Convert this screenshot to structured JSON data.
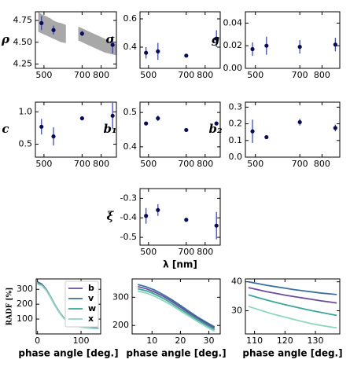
{
  "chart_data": [
    {
      "type": "errorbar",
      "ylabel": "ρ",
      "x": [
        487,
        550,
        700,
        860
      ],
      "values": [
        4.72,
        4.64,
        4.6,
        4.47
      ],
      "errors": [
        0.08,
        0.05,
        0.03,
        0.1
      ],
      "band": {
        "x": [
          470,
          490,
          510,
          530,
          550,
          570,
          590,
          615,
          650,
          680,
          700,
          720,
          740,
          760,
          780,
          800,
          820,
          840,
          860,
          880
        ],
        "upper": [
          4.85,
          4.82,
          4.8,
          4.78,
          4.75,
          4.73,
          4.72,
          4.7,
          null,
          4.68,
          4.66,
          4.64,
          4.62,
          4.6,
          4.58,
          4.56,
          4.54,
          4.52,
          4.5,
          4.48
        ],
        "lower": [
          4.62,
          4.6,
          4.58,
          4.56,
          4.54,
          4.52,
          4.5,
          4.49,
          null,
          4.52,
          4.5,
          4.48,
          4.46,
          4.44,
          4.42,
          4.4,
          4.38,
          4.37,
          4.36,
          4.35
        ],
        "color": "#999999"
      },
      "color": "#0b0b5c",
      "error_color": "#2a3bd6",
      "xlim": [
        455,
        880
      ],
      "xticks": [
        500,
        700,
        800
      ],
      "ylim": [
        4.2,
        4.85
      ],
      "yticks": [
        {
          "value": 4.25,
          "label": "4.25"
        },
        {
          "value": 4.5,
          "label": "4.50"
        },
        {
          "value": 4.75,
          "label": "4.75"
        }
      ]
    },
    {
      "type": "errorbar",
      "ylabel": "σ",
      "x": [
        487,
        550,
        700,
        860
      ],
      "values": [
        0.36,
        0.37,
        0.34,
        0.46
      ],
      "errors": [
        0.04,
        0.06,
        0.01,
        0.06
      ],
      "color": "#0b0b5c",
      "error_color": "#2a3bd6",
      "xlim": [
        455,
        880
      ],
      "xticks": [
        500,
        700,
        800
      ],
      "ylim": [
        0.25,
        0.65
      ],
      "yticks": [
        0.4,
        0.6
      ]
    },
    {
      "type": "errorbar",
      "ylabel": "g",
      "x": [
        487,
        550,
        700,
        860
      ],
      "values": [
        0.017,
        0.02,
        0.019,
        0.021
      ],
      "errors": [
        0.006,
        0.008,
        0.006,
        0.006
      ],
      "color": "#0b0b5c",
      "error_color": "#2a3bd6",
      "xlim": [
        455,
        880
      ],
      "xticks": [
        500,
        700,
        800
      ],
      "ylim": [
        0,
        0.05
      ],
      "yticks": [
        {
          "value": 0,
          "label": "0.00"
        },
        0.02,
        0.04
      ]
    },
    {
      "type": "errorbar",
      "ylabel": "c",
      "x": [
        487,
        550,
        700,
        860
      ],
      "values": [
        0.77,
        0.62,
        0.9,
        0.94
      ],
      "errors": [
        0.12,
        0.14,
        0.03,
        0.2
      ],
      "color": "#0b0b5c",
      "error_color": "#2a3bd6",
      "xlim": [
        455,
        880
      ],
      "xticks": [
        500,
        700,
        800
      ],
      "ylim": [
        0.3,
        1.15
      ],
      "yticks": [
        0.5,
        {
          "value": 1,
          "label": "1.0"
        }
      ]
    },
    {
      "type": "errorbar",
      "ylabel": "b₁",
      "x": [
        487,
        550,
        700,
        860
      ],
      "values": [
        0.468,
        0.483,
        0.449,
        0.468
      ],
      "errors": [
        0.005,
        0.008,
        0.004,
        0.006
      ],
      "color": "#0b0b5c",
      "error_color": "#2a3bd6",
      "xlim": [
        455,
        880
      ],
      "xticks": [
        500,
        700,
        800
      ],
      "ylim": [
        0.37,
        0.53
      ],
      "yticks": [
        0.4,
        0.5
      ]
    },
    {
      "type": "errorbar",
      "ylabel": "b₂",
      "x": [
        487,
        550,
        700,
        860
      ],
      "values": [
        0.155,
        0.12,
        0.21,
        0.175
      ],
      "errors": [
        0.07,
        0.005,
        0.02,
        0.02
      ],
      "color": "#0b0b5c",
      "error_color": "#2a3bd6",
      "xlim": [
        455,
        880
      ],
      "xticks": [
        500,
        700,
        800
      ],
      "ylim": [
        0,
        0.33
      ],
      "yticks": [
        {
          "value": 0,
          "label": "0.0"
        },
        0.1,
        0.2,
        0.3
      ]
    },
    {
      "type": "errorbar",
      "ylabel": "ξ",
      "xlabel": "λ [nm]",
      "x": [
        487,
        550,
        700,
        860
      ],
      "values": [
        -0.39,
        -0.36,
        -0.41,
        -0.44
      ],
      "errors": [
        0.04,
        0.03,
        0.01,
        0.07
      ],
      "color": "#0b0b5c",
      "error_color": "#2a3bd6",
      "xlim": [
        455,
        880
      ],
      "xticks": [
        500,
        700,
        800
      ],
      "ylim": [
        -0.54,
        -0.25
      ],
      "yticks": [
        -0.3,
        -0.4,
        -0.5
      ]
    },
    {
      "type": "line",
      "ylabel": "RADF [%]",
      "xlabel": "phase angle [deg.]",
      "legend": "upper right",
      "x": [
        0,
        10,
        20,
        30,
        40,
        50,
        60,
        70,
        80,
        90,
        100,
        110,
        120,
        130,
        140
      ],
      "xlim": [
        -3,
        145
      ],
      "xticks": [
        0,
        100
      ],
      "ylim": [
        0,
        370
      ],
      "yticks": [
        100,
        200,
        300
      ],
      "series": [
        {
          "name": "b",
          "color": "#6a4c9c",
          "values": [
            350,
            335,
            300,
            250,
            195,
            148,
            110,
            84,
            67,
            56,
            49,
            45,
            42,
            40,
            39
          ]
        },
        {
          "name": "v",
          "color": "#3b6fa0",
          "values": [
            345,
            332,
            298,
            249,
            194,
            147,
            109,
            83,
            66,
            55,
            48,
            44,
            41,
            39,
            38
          ]
        },
        {
          "name": "w",
          "color": "#3aa69a",
          "values": [
            340,
            328,
            295,
            247,
            193,
            146,
            108,
            82,
            65,
            54,
            47,
            43,
            40,
            38,
            37
          ]
        },
        {
          "name": "x",
          "color": "#8fd5c0",
          "values": [
            335,
            325,
            293,
            246,
            192,
            145,
            107,
            81,
            64,
            53,
            46,
            42,
            39,
            37,
            36
          ]
        }
      ]
    },
    {
      "type": "line",
      "xlabel": "phase angle [deg.]",
      "x": [
        5,
        8,
        11,
        14,
        17,
        20,
        23,
        26,
        29,
        32
      ],
      "xlim": [
        3,
        34
      ],
      "xticks": [
        10,
        20,
        30
      ],
      "ylim": [
        170,
        365
      ],
      "yticks": [
        200,
        300
      ],
      "series": [
        {
          "color": "#6a4c9c",
          "values": [
            338,
            330,
            318,
            303,
            285,
            265,
            245,
            226,
            207,
            191
          ]
        },
        {
          "color": "#3b6fa0",
          "values": [
            345,
            337,
            325,
            309,
            291,
            271,
            250,
            230,
            212,
            195
          ]
        },
        {
          "color": "#3aa69a",
          "values": [
            330,
            323,
            311,
            296,
            278,
            258,
            239,
            220,
            202,
            185
          ]
        },
        {
          "color": "#8fd5c0",
          "values": [
            322,
            315,
            303,
            288,
            271,
            252,
            233,
            214,
            196,
            180
          ]
        }
      ]
    },
    {
      "type": "line",
      "xlabel": "phase angle [deg.]",
      "x": [
        108,
        111,
        114,
        117,
        120,
        123,
        126,
        129,
        132,
        135,
        137
      ],
      "xlim": [
        107,
        138
      ],
      "xticks": [
        110,
        120,
        130
      ],
      "ylim": [
        22,
        41
      ],
      "yticks": [
        30,
        40
      ],
      "series": [
        {
          "color": "#6a4c9c",
          "values": [
            38,
            37.3,
            36.6,
            36,
            35.4,
            34.9,
            34.4,
            33.9,
            33.4,
            33,
            32.7
          ]
        },
        {
          "color": "#3b6fa0",
          "values": [
            40,
            39.4,
            38.8,
            38.3,
            37.8,
            37.3,
            36.9,
            36.5,
            36.1,
            35.8,
            35.6
          ]
        },
        {
          "color": "#3aa69a",
          "values": [
            35.5,
            34.6,
            33.7,
            32.9,
            32.1,
            31.4,
            30.7,
            30,
            29.4,
            28.8,
            28.4
          ]
        },
        {
          "color": "#8fd5c0",
          "values": [
            31.5,
            30.5,
            29.5,
            28.6,
            27.8,
            27,
            26.2,
            25.5,
            24.9,
            24.4,
            24.1
          ]
        }
      ]
    }
  ]
}
